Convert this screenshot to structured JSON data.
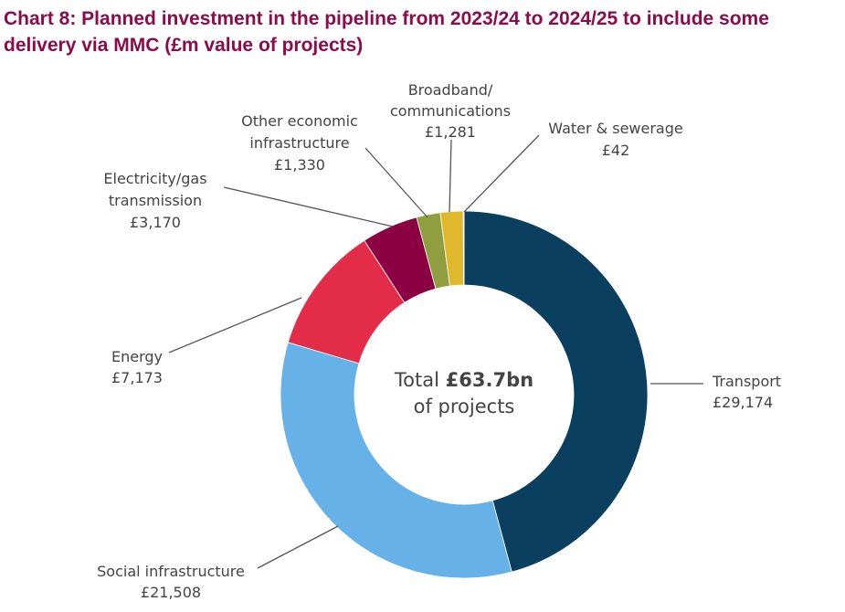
{
  "chart_data": {
    "type": "pie",
    "variant": "donut",
    "title": "Chart 8: Planned investment in the pipeline from 2023/24 to 2024/25 to include some delivery via MMC (£m value of projects)",
    "center_label": {
      "prefix": "Total ",
      "value": "£63.7bn",
      "suffix": "of projects"
    },
    "slices": [
      {
        "name": "Transport",
        "value": 29174,
        "value_label": "£29,174",
        "color": "#0b3f5f"
      },
      {
        "name": "Social infrastructure",
        "value": 21508,
        "value_label": "£21,508",
        "color": "#66b2e8"
      },
      {
        "name": "Energy",
        "value": 7173,
        "value_label": "£7,173",
        "color": "#e22c48"
      },
      {
        "name": "Electricity/gas transmission",
        "value": 3170,
        "value_label": "£3,170",
        "color": "#8b0043"
      },
      {
        "name": "Other economic infrastructure",
        "value": 1330,
        "value_label": "£1,330",
        "color": "#8f9f3f"
      },
      {
        "name": "Broadband/ communications",
        "value": 1281,
        "value_label": "£1,281",
        "color": "#e0b82c"
      },
      {
        "name": "Water & sewerage",
        "value": 42,
        "value_label": "£42",
        "color": "#555555"
      }
    ],
    "start": "top",
    "direction": "clockwise",
    "legend": "none (leader-line labels)"
  }
}
